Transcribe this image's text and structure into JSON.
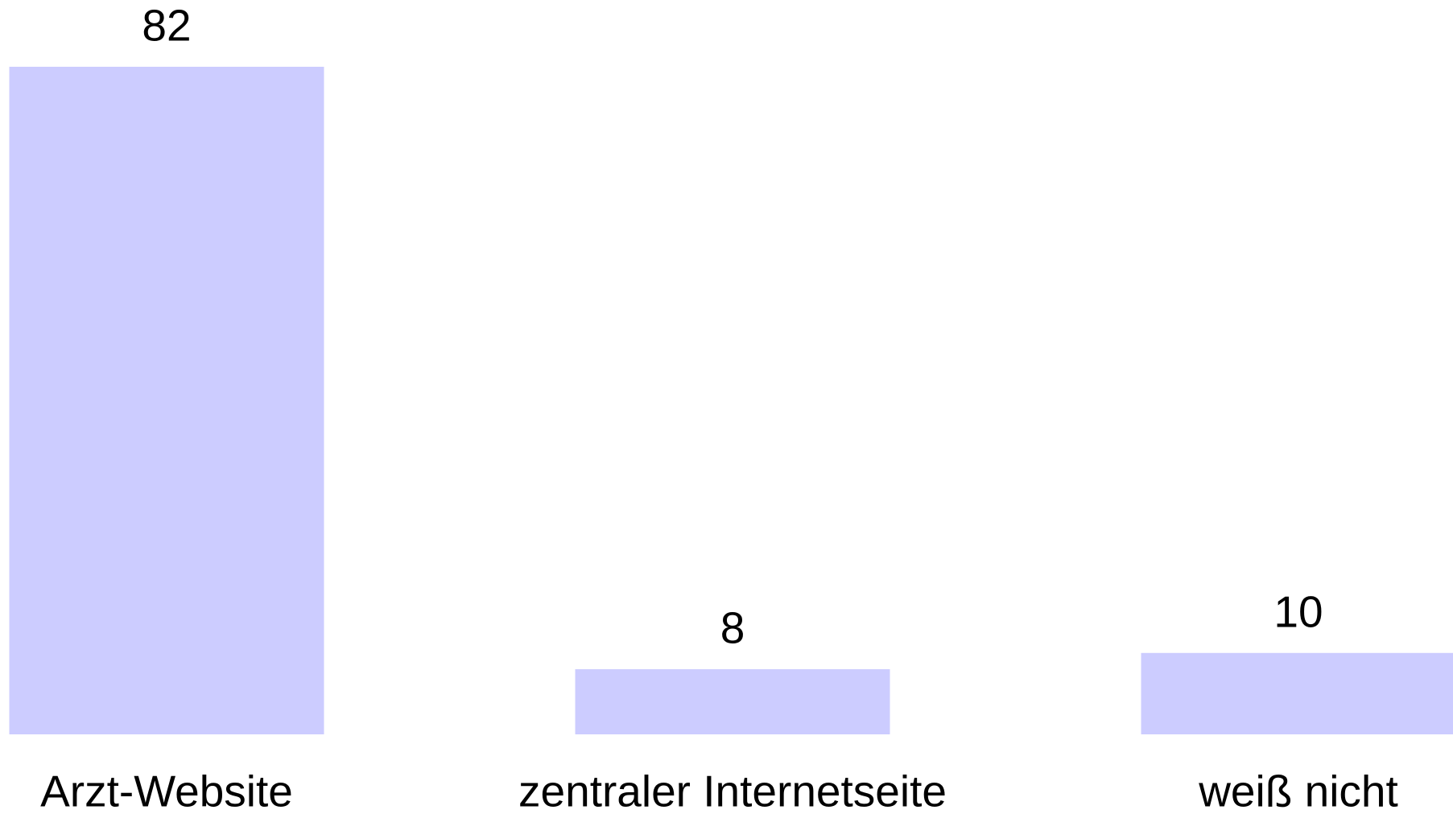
{
  "chart_data": {
    "type": "bar",
    "categories": [
      "Arzt-Website",
      "zentraler Internetseite",
      "weiß nicht"
    ],
    "values": [
      82,
      8,
      10
    ],
    "color": "#ccccff"
  }
}
